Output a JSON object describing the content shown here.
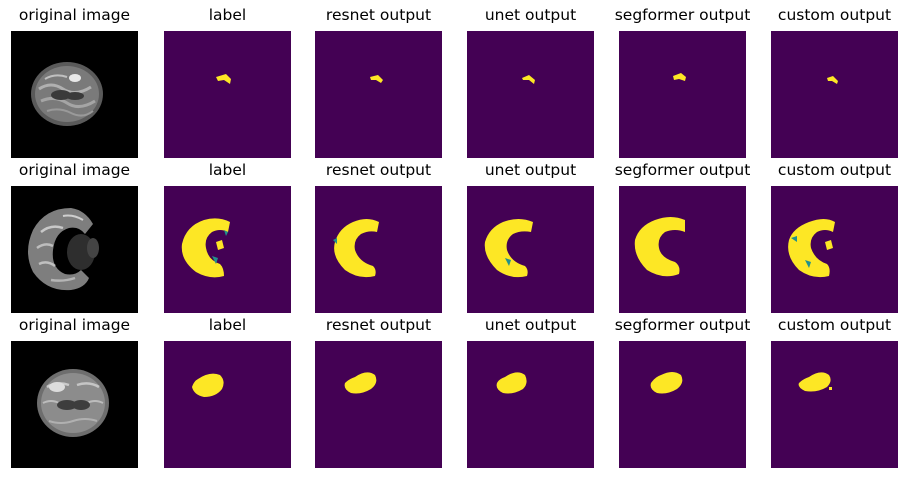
{
  "columns": [
    "original image",
    "label",
    "resnet output",
    "unet output",
    "segformer output",
    "custom output"
  ],
  "rows": [
    {
      "titles": [
        "original image",
        "label",
        "resnet output",
        "unet output",
        "segformer output",
        "custom output"
      ],
      "scan": "mri-axial-slice-1",
      "masks": [
        "label-mask",
        "resnet-mask",
        "unet-mask",
        "segformer-mask",
        "custom-mask"
      ]
    },
    {
      "titles": [
        "original image",
        "label",
        "resnet output",
        "unet output",
        "segformer output",
        "custom output"
      ],
      "scan": "mri-axial-slice-2",
      "masks": [
        "label-mask",
        "resnet-mask",
        "unet-mask",
        "segformer-mask",
        "custom-mask"
      ]
    },
    {
      "titles": [
        "original image",
        "label",
        "resnet output",
        "unet output",
        "segformer output",
        "custom output"
      ],
      "scan": "mri-axial-slice-3",
      "masks": [
        "label-mask",
        "resnet-mask",
        "unet-mask",
        "segformer-mask",
        "custom-mask"
      ]
    }
  ],
  "colors": {
    "background_mask": "#440154",
    "lesion_mask": "#fde725",
    "edge_mask": "#21918c",
    "scan_background": "#000000"
  }
}
